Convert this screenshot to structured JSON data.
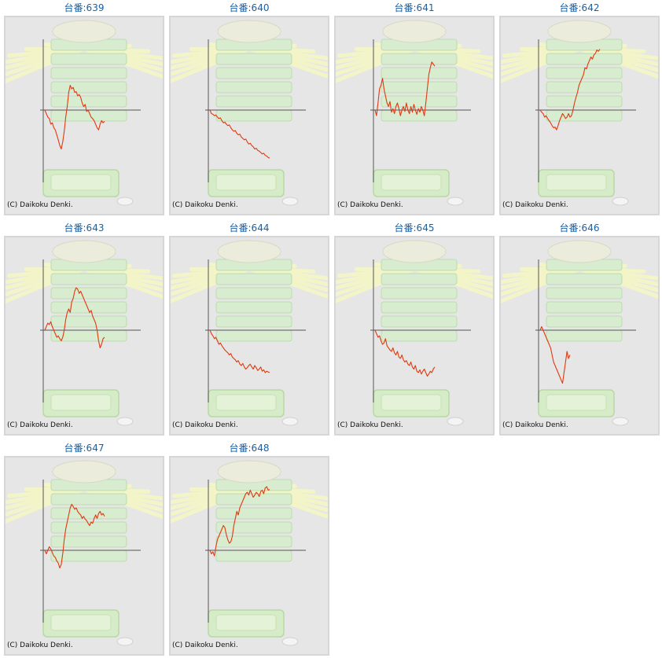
{
  "label_prefix": "台番:",
  "copyright": "(C) Daikoku Denki.",
  "colors": {
    "line": "#e03a10",
    "title": "#1b5fa0",
    "panel_bg": "#e6e6e6",
    "axis": "#555555"
  },
  "chart_data": [
    {
      "type": "line",
      "title": "639",
      "x": [
        0,
        1,
        2,
        3,
        4,
        5,
        6,
        7,
        8,
        9,
        10,
        11,
        12,
        13,
        14,
        15,
        16,
        17,
        18,
        19,
        20,
        21,
        22,
        23,
        24,
        25,
        26,
        27,
        28,
        29,
        30,
        31,
        32,
        33,
        34,
        35,
        36,
        37,
        38,
        39,
        40
      ],
      "values": [
        0,
        -5,
        -10,
        -12,
        -20,
        -18,
        -25,
        -28,
        -35,
        -42,
        -50,
        -55,
        -45,
        -30,
        -10,
        5,
        25,
        35,
        30,
        32,
        25,
        26,
        20,
        22,
        18,
        10,
        5,
        8,
        -2,
        0,
        -5,
        -10,
        -12,
        -15,
        -20,
        -25,
        -28,
        -20,
        -15,
        -18,
        -16
      ]
    },
    {
      "type": "line",
      "title": "640",
      "x": [
        0,
        1,
        2,
        3,
        4,
        5,
        6,
        7,
        8,
        9,
        10,
        11,
        12,
        13,
        14,
        15,
        16,
        17,
        18,
        19,
        20,
        21,
        22,
        23,
        24,
        25,
        26,
        27,
        28,
        29,
        30,
        31,
        32,
        33,
        34,
        35,
        36,
        37,
        38,
        39,
        40
      ],
      "values": [
        0,
        -5,
        -6,
        -8,
        -7,
        -10,
        -12,
        -11,
        -15,
        -18,
        -17,
        -20,
        -22,
        -21,
        -25,
        -28,
        -30,
        -29,
        -33,
        -35,
        -34,
        -38,
        -40,
        -42,
        -41,
        -45,
        -48,
        -47,
        -50,
        -52,
        -55,
        -54,
        -57,
        -58,
        -60,
        -62,
        -61,
        -64,
        -65,
        -67,
        -68
      ]
    },
    {
      "type": "line",
      "title": "641",
      "x": [
        0,
        1,
        2,
        3,
        4,
        5,
        6,
        7,
        8,
        9,
        10,
        11,
        12,
        13,
        14,
        15,
        16,
        17,
        18,
        19,
        20,
        21,
        22,
        23,
        24,
        25,
        26,
        27,
        28,
        29,
        30,
        31,
        32,
        33,
        34,
        35,
        36,
        37,
        38,
        39,
        40
      ],
      "values": [
        0,
        -8,
        10,
        30,
        35,
        45,
        30,
        20,
        10,
        5,
        12,
        -3,
        2,
        -5,
        5,
        10,
        2,
        -8,
        0,
        5,
        -2,
        10,
        0,
        -5,
        5,
        -3,
        8,
        0,
        -6,
        2,
        -3,
        5,
        0,
        -8,
        10,
        30,
        50,
        60,
        68,
        65,
        62
      ]
    },
    {
      "type": "line",
      "title": "642",
      "x": [
        0,
        1,
        2,
        3,
        4,
        5,
        6,
        7,
        8,
        9,
        10,
        11,
        12,
        13,
        14,
        15,
        16,
        17,
        18,
        19,
        20,
        21,
        22,
        23,
        24,
        25,
        26,
        27,
        28,
        29,
        30,
        31,
        32,
        33,
        34,
        35,
        36,
        37,
        38,
        39,
        40
      ],
      "values": [
        0,
        -3,
        -5,
        -10,
        -8,
        -12,
        -15,
        -18,
        -22,
        -25,
        -24,
        -28,
        -22,
        -15,
        -10,
        -5,
        -8,
        -12,
        -10,
        -5,
        -10,
        -8,
        0,
        10,
        18,
        25,
        35,
        40,
        45,
        50,
        60,
        58,
        65,
        70,
        75,
        72,
        78,
        80,
        85,
        83,
        86
      ]
    },
    {
      "type": "line",
      "title": "643",
      "x": [
        0,
        1,
        2,
        3,
        4,
        5,
        6,
        7,
        8,
        9,
        10,
        11,
        12,
        13,
        14,
        15,
        16,
        17,
        18,
        19,
        20,
        21,
        22,
        23,
        24,
        25,
        26,
        27,
        28,
        29,
        30,
        31,
        32,
        33,
        34,
        35,
        36,
        37,
        38,
        39,
        40
      ],
      "values": [
        0,
        5,
        10,
        8,
        12,
        5,
        0,
        -5,
        -10,
        -8,
        -12,
        -15,
        -10,
        0,
        15,
        25,
        30,
        25,
        40,
        45,
        55,
        60,
        58,
        52,
        55,
        50,
        45,
        40,
        35,
        30,
        25,
        28,
        20,
        15,
        10,
        0,
        -15,
        -25,
        -20,
        -12,
        -10
      ]
    },
    {
      "type": "line",
      "title": "644",
      "x": [
        0,
        1,
        2,
        3,
        4,
        5,
        6,
        7,
        8,
        9,
        10,
        11,
        12,
        13,
        14,
        15,
        16,
        17,
        18,
        19,
        20,
        21,
        22,
        23,
        24,
        25,
        26,
        27,
        28,
        29,
        30,
        31,
        32,
        33,
        34,
        35,
        36,
        37,
        38,
        39,
        40
      ],
      "values": [
        0,
        -5,
        -8,
        -12,
        -10,
        -15,
        -20,
        -18,
        -22,
        -25,
        -28,
        -30,
        -32,
        -35,
        -33,
        -38,
        -40,
        -42,
        -45,
        -43,
        -48,
        -50,
        -47,
        -52,
        -55,
        -53,
        -50,
        -48,
        -52,
        -55,
        -50,
        -53,
        -57,
        -55,
        -52,
        -58,
        -56,
        -60,
        -58,
        -59,
        -60
      ]
    },
    {
      "type": "line",
      "title": "645",
      "x": [
        0,
        1,
        2,
        3,
        4,
        5,
        6,
        7,
        8,
        9,
        10,
        11,
        12,
        13,
        14,
        15,
        16,
        17,
        18,
        19,
        20,
        21,
        22,
        23,
        24,
        25,
        26,
        27,
        28,
        29,
        30,
        31,
        32,
        33,
        34,
        35,
        36,
        37,
        38,
        39,
        40
      ],
      "values": [
        0,
        -5,
        -10,
        -8,
        -15,
        -20,
        -18,
        -12,
        -22,
        -25,
        -28,
        -30,
        -25,
        -32,
        -35,
        -30,
        -38,
        -40,
        -35,
        -42,
        -45,
        -43,
        -48,
        -50,
        -45,
        -52,
        -55,
        -50,
        -58,
        -60,
        -56,
        -62,
        -58,
        -55,
        -60,
        -65,
        -62,
        -58,
        -60,
        -55,
        -52
      ]
    },
    {
      "type": "line",
      "title": "646",
      "x": [
        0,
        1,
        2,
        3,
        4,
        5,
        6,
        7,
        8,
        9,
        10,
        11,
        12,
        13,
        14,
        15,
        16,
        17,
        18,
        19,
        20
      ],
      "values": [
        0,
        5,
        0,
        -5,
        -10,
        -15,
        -20,
        -25,
        -35,
        -45,
        -50,
        -55,
        -60,
        -65,
        -70,
        -75,
        -60,
        -45,
        -30,
        -40,
        -35
      ]
    },
    {
      "type": "line",
      "title": "647",
      "x": [
        0,
        1,
        2,
        3,
        4,
        5,
        6,
        7,
        8,
        9,
        10,
        11,
        12,
        13,
        14,
        15,
        16,
        17,
        18,
        19,
        20,
        21,
        22,
        23,
        24,
        25,
        26,
        27,
        28,
        29,
        30,
        31,
        32,
        33,
        34,
        35,
        36,
        37,
        38,
        39,
        40
      ],
      "values": [
        0,
        -5,
        0,
        5,
        2,
        -3,
        -8,
        -10,
        -15,
        -18,
        -25,
        -20,
        -5,
        15,
        30,
        40,
        50,
        60,
        65,
        62,
        58,
        60,
        55,
        52,
        50,
        45,
        48,
        44,
        42,
        38,
        35,
        40,
        38,
        45,
        50,
        45,
        52,
        55,
        50,
        52,
        48
      ]
    },
    {
      "type": "line",
      "title": "648",
      "x": [
        0,
        1,
        2,
        3,
        4,
        5,
        6,
        7,
        8,
        9,
        10,
        11,
        12,
        13,
        14,
        15,
        16,
        17,
        18,
        19,
        20,
        21,
        22,
        23,
        24,
        25,
        26,
        27,
        28,
        29,
        30,
        31,
        32,
        33,
        34,
        35,
        36,
        37,
        38,
        39,
        40
      ],
      "values": [
        0,
        -5,
        -2,
        -8,
        5,
        15,
        20,
        25,
        30,
        35,
        32,
        22,
        15,
        10,
        12,
        20,
        35,
        45,
        55,
        50,
        60,
        65,
        70,
        75,
        80,
        82,
        78,
        85,
        80,
        75,
        78,
        82,
        80,
        76,
        83,
        85,
        80,
        88,
        90,
        85,
        86
      ]
    }
  ]
}
